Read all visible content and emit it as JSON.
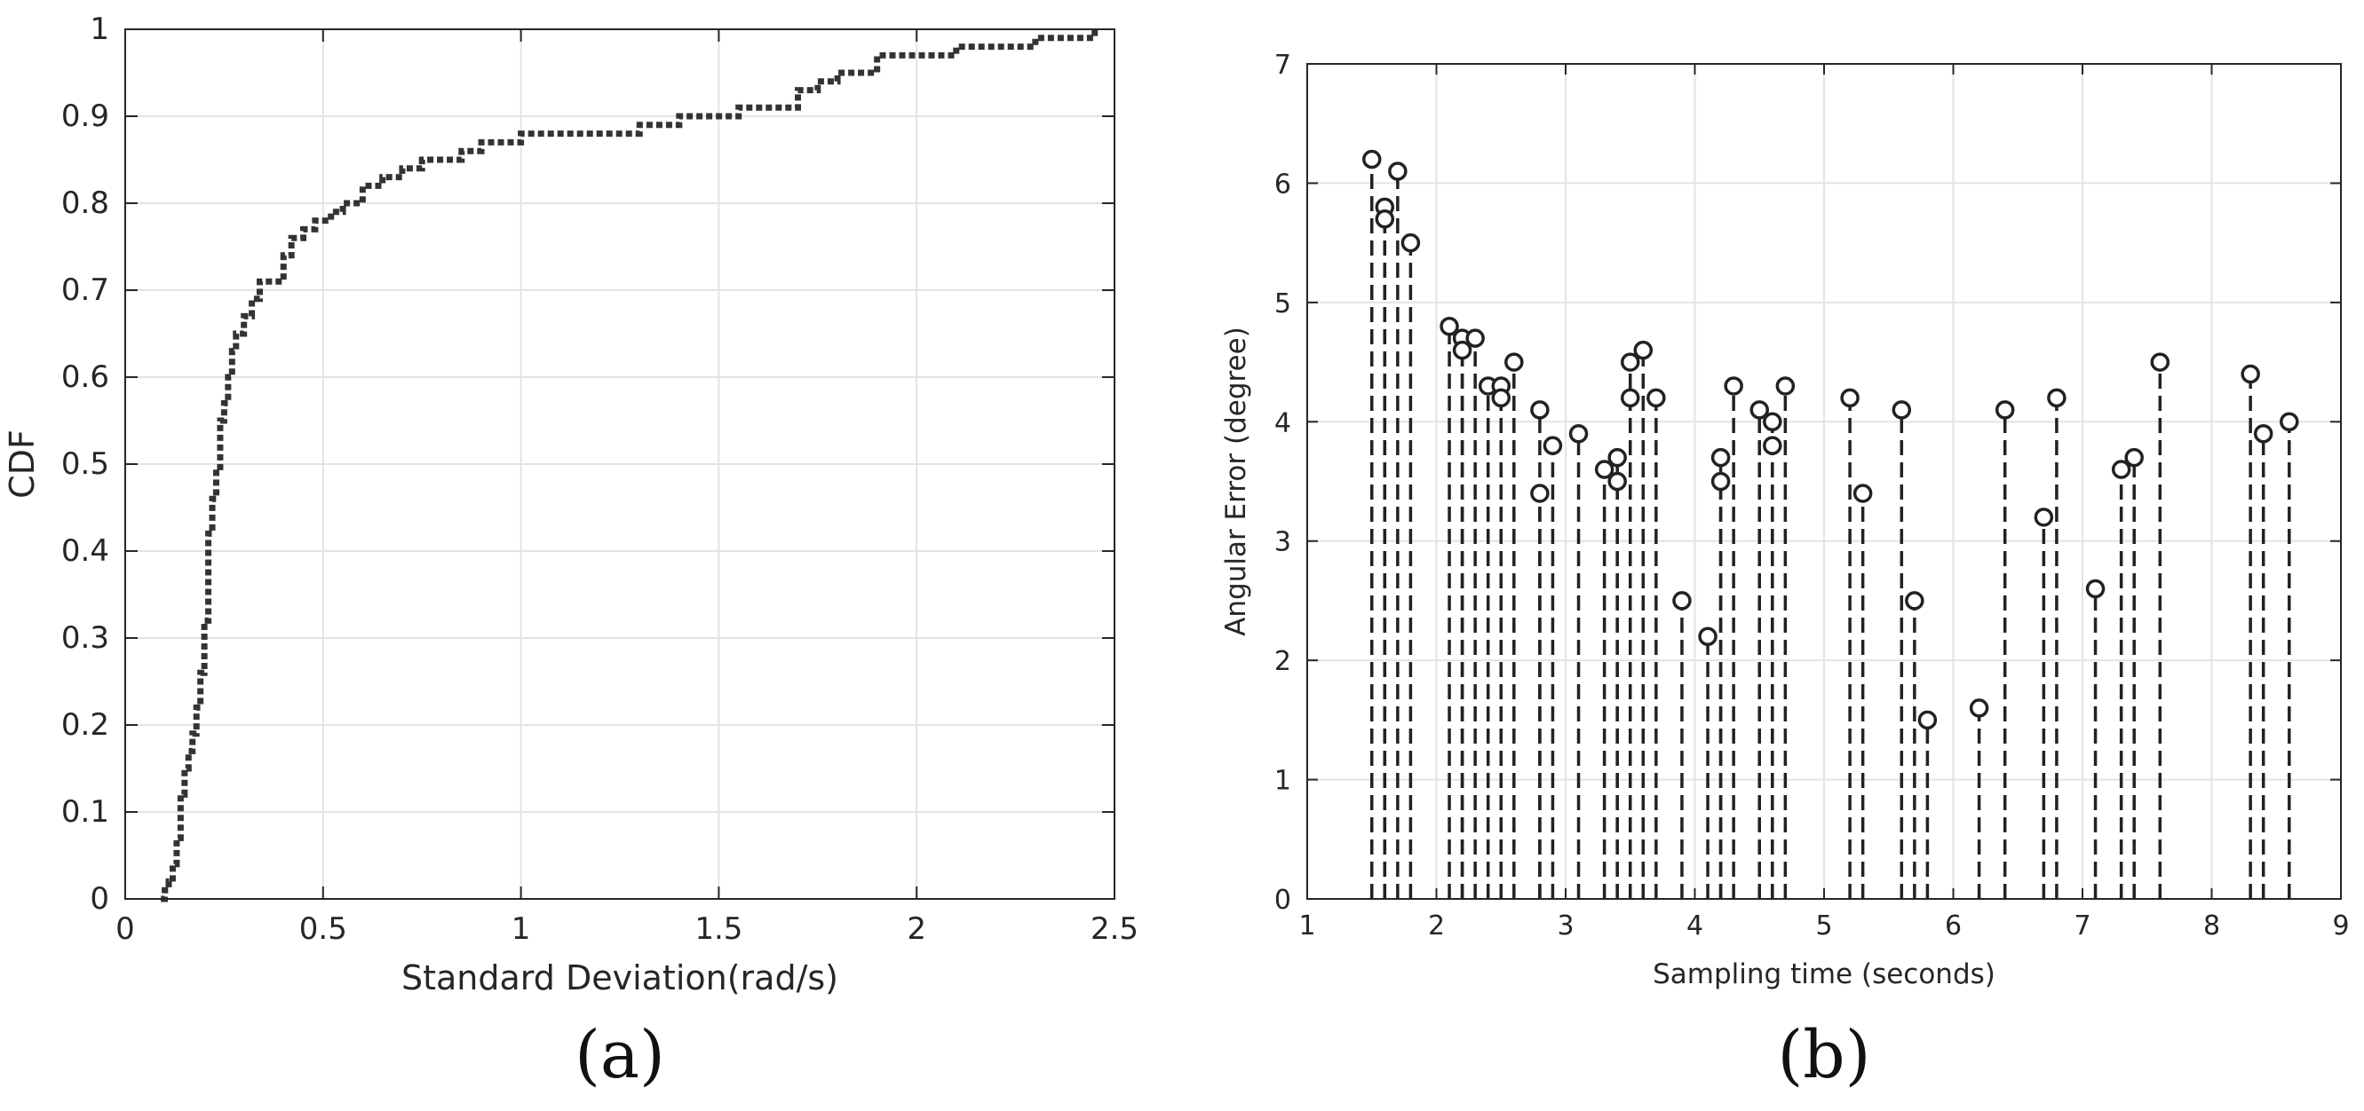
{
  "chart_data": [
    {
      "type": "line",
      "panel_label": "(a)",
      "title": "",
      "xlabel": "Standard Deviation(rad/s)",
      "ylabel": "CDF",
      "xlim": [
        0,
        2.5
      ],
      "ylim": [
        0,
        1
      ],
      "xticks": [
        0,
        0.5,
        1,
        1.5,
        2,
        2.5
      ],
      "xtick_labels": [
        "0",
        "0.5",
        "1",
        "1.5",
        "2",
        "2.5"
      ],
      "yticks": [
        0,
        0.1,
        0.2,
        0.3,
        0.4,
        0.5,
        0.6,
        0.7,
        0.8,
        0.9,
        1
      ],
      "ytick_labels": [
        "0",
        "0.1",
        "0.2",
        "0.3",
        "0.4",
        "0.5",
        "0.6",
        "0.7",
        "0.8",
        "0.9",
        "1"
      ],
      "grid": true,
      "line_style": "dotted step",
      "color": "#333333",
      "series": [
        {
          "name": "CDF",
          "x": [
            0.09,
            0.1,
            0.11,
            0.12,
            0.13,
            0.14,
            0.15,
            0.16,
            0.17,
            0.18,
            0.19,
            0.2,
            0.21,
            0.22,
            0.23,
            0.24,
            0.25,
            0.26,
            0.27,
            0.28,
            0.3,
            0.32,
            0.34,
            0.36,
            0.4,
            0.42,
            0.45,
            0.48,
            0.52,
            0.55,
            0.6,
            0.65,
            0.7,
            0.75,
            0.85,
            0.9,
            1.0,
            1.3,
            1.4,
            1.55,
            1.7,
            1.75,
            1.8,
            1.9,
            2.1,
            2.3,
            2.35,
            2.45
          ],
          "y": [
            0.0,
            0.01,
            0.02,
            0.04,
            0.07,
            0.12,
            0.15,
            0.17,
            0.19,
            0.22,
            0.26,
            0.32,
            0.42,
            0.46,
            0.49,
            0.55,
            0.57,
            0.6,
            0.63,
            0.65,
            0.67,
            0.69,
            0.71,
            0.71,
            0.74,
            0.76,
            0.77,
            0.78,
            0.79,
            0.8,
            0.82,
            0.83,
            0.84,
            0.85,
            0.86,
            0.87,
            0.88,
            0.89,
            0.9,
            0.91,
            0.93,
            0.94,
            0.95,
            0.97,
            0.98,
            0.99,
            0.99,
            1.0
          ]
        }
      ]
    },
    {
      "type": "stem",
      "panel_label": "(b)",
      "title": "",
      "xlabel": "Sampling time (seconds)",
      "ylabel": "Angular Error (degree)",
      "xlim": [
        1,
        9
      ],
      "ylim": [
        0,
        7
      ],
      "xticks": [
        1,
        2,
        3,
        4,
        5,
        6,
        7,
        8,
        9
      ],
      "xtick_labels": [
        "1",
        "2",
        "3",
        "4",
        "5",
        "6",
        "7",
        "8",
        "9"
      ],
      "yticks": [
        0,
        1,
        2,
        3,
        4,
        5,
        6,
        7
      ],
      "ytick_labels": [
        "0",
        "1",
        "2",
        "3",
        "4",
        "5",
        "6",
        "7"
      ],
      "grid": true,
      "marker": "circle",
      "color": "#222222",
      "series": [
        {
          "name": "Angular Error",
          "x": [
            1.5,
            1.6,
            1.6,
            1.7,
            1.8,
            2.1,
            2.2,
            2.2,
            2.3,
            2.4,
            2.5,
            2.5,
            2.6,
            2.8,
            2.8,
            2.9,
            3.1,
            3.3,
            3.4,
            3.4,
            3.5,
            3.5,
            3.6,
            3.7,
            3.9,
            4.1,
            4.2,
            4.2,
            4.3,
            4.5,
            4.6,
            4.6,
            4.7,
            5.2,
            5.3,
            5.6,
            5.7,
            5.8,
            6.2,
            6.4,
            6.7,
            6.8,
            7.1,
            7.3,
            7.4,
            7.6,
            8.3,
            8.4,
            8.6
          ],
          "y": [
            6.2,
            5.8,
            5.7,
            6.1,
            5.5,
            4.8,
            4.7,
            4.6,
            4.7,
            4.3,
            4.3,
            4.2,
            4.5,
            4.1,
            3.4,
            3.8,
            3.9,
            3.6,
            3.7,
            3.5,
            4.5,
            4.2,
            4.6,
            4.2,
            2.5,
            2.2,
            3.7,
            3.5,
            4.3,
            4.1,
            4.0,
            3.8,
            4.3,
            4.2,
            3.4,
            4.1,
            2.5,
            1.5,
            1.6,
            4.1,
            3.2,
            4.2,
            2.6,
            3.6,
            3.7,
            4.5,
            4.4,
            3.9,
            4.0
          ]
        }
      ]
    }
  ]
}
